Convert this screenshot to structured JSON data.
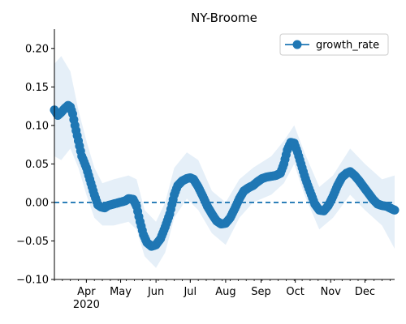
{
  "chart_data": {
    "type": "line",
    "title": "NY-Broome",
    "xlabel": "",
    "ylabel": "",
    "x_range": [
      "2020-03-04",
      "2020-12-27"
    ],
    "ylim": [
      -0.1,
      0.225
    ],
    "y_ticks": [
      -0.1,
      -0.05,
      0.0,
      0.05,
      0.1,
      0.15,
      0.2
    ],
    "y_tick_labels": [
      "−0.10",
      "−0.05",
      "0.00",
      "0.05",
      "0.10",
      "0.15",
      "0.20"
    ],
    "x_ticks": [
      {
        "date": "2020-04-01",
        "label": "Apr"
      },
      {
        "date": "2020-05-01",
        "label": "May"
      },
      {
        "date": "2020-06-01",
        "label": "Jun"
      },
      {
        "date": "2020-07-01",
        "label": "Jul"
      },
      {
        "date": "2020-08-01",
        "label": "Aug"
      },
      {
        "date": "2020-09-01",
        "label": "Sep"
      },
      {
        "date": "2020-10-01",
        "label": "Oct"
      },
      {
        "date": "2020-11-01",
        "label": "Nov"
      },
      {
        "date": "2020-12-01",
        "label": "Dec"
      }
    ],
    "x_year_label": "2020",
    "legend": {
      "placement": "top-right",
      "entries": [
        "growth_rate"
      ]
    },
    "reference_line": {
      "y": 0.0,
      "style": "dashed"
    },
    "grid": false,
    "colors": {
      "series": "#1f77b4",
      "band": "#d4e4f4"
    },
    "series": [
      {
        "name": "growth_rate",
        "points": [
          [
            "2020-03-04",
            0.12
          ],
          [
            "2020-03-07",
            0.113
          ],
          [
            "2020-03-10",
            0.117
          ],
          [
            "2020-03-13",
            0.122
          ],
          [
            "2020-03-16",
            0.126
          ],
          [
            "2020-03-18",
            0.124
          ],
          [
            "2020-03-20",
            0.115
          ],
          [
            "2020-03-22",
            0.1
          ],
          [
            "2020-03-25",
            0.08
          ],
          [
            "2020-03-28",
            0.06
          ],
          [
            "2020-04-01",
            0.045
          ],
          [
            "2020-04-05",
            0.025
          ],
          [
            "2020-04-08",
            0.01
          ],
          [
            "2020-04-11",
            -0.003
          ],
          [
            "2020-04-14",
            -0.006
          ],
          [
            "2020-04-17",
            -0.007
          ],
          [
            "2020-04-20",
            -0.004
          ],
          [
            "2020-04-25",
            -0.002
          ],
          [
            "2020-04-30",
            0.0
          ],
          [
            "2020-05-05",
            0.002
          ],
          [
            "2020-05-08",
            0.005
          ],
          [
            "2020-05-12",
            0.004
          ],
          [
            "2020-05-15",
            -0.005
          ],
          [
            "2020-05-18",
            -0.025
          ],
          [
            "2020-05-21",
            -0.042
          ],
          [
            "2020-05-24",
            -0.052
          ],
          [
            "2020-05-28",
            -0.057
          ],
          [
            "2020-06-01",
            -0.055
          ],
          [
            "2020-06-05",
            -0.047
          ],
          [
            "2020-06-09",
            -0.032
          ],
          [
            "2020-06-13",
            -0.015
          ],
          [
            "2020-06-17",
            0.01
          ],
          [
            "2020-06-20",
            0.022
          ],
          [
            "2020-06-24",
            0.028
          ],
          [
            "2020-06-28",
            0.031
          ],
          [
            "2020-07-01",
            0.032
          ],
          [
            "2020-07-04",
            0.03
          ],
          [
            "2020-07-08",
            0.02
          ],
          [
            "2020-07-12",
            0.008
          ],
          [
            "2020-07-16",
            -0.005
          ],
          [
            "2020-07-20",
            -0.015
          ],
          [
            "2020-07-24",
            -0.024
          ],
          [
            "2020-07-28",
            -0.028
          ],
          [
            "2020-08-01",
            -0.027
          ],
          [
            "2020-08-05",
            -0.02
          ],
          [
            "2020-08-09",
            -0.008
          ],
          [
            "2020-08-13",
            0.005
          ],
          [
            "2020-08-17",
            0.015
          ],
          [
            "2020-08-21",
            0.019
          ],
          [
            "2020-08-25",
            0.022
          ],
          [
            "2020-08-29",
            0.027
          ],
          [
            "2020-09-02",
            0.031
          ],
          [
            "2020-09-06",
            0.033
          ],
          [
            "2020-09-10",
            0.034
          ],
          [
            "2020-09-14",
            0.035
          ],
          [
            "2020-09-18",
            0.038
          ],
          [
            "2020-09-21",
            0.05
          ],
          [
            "2020-09-24",
            0.068
          ],
          [
            "2020-09-27",
            0.078
          ],
          [
            "2020-09-30",
            0.077
          ],
          [
            "2020-10-03",
            0.065
          ],
          [
            "2020-10-06",
            0.05
          ],
          [
            "2020-10-09",
            0.035
          ],
          [
            "2020-10-12",
            0.022
          ],
          [
            "2020-10-15",
            0.01
          ],
          [
            "2020-10-18",
            -0.002
          ],
          [
            "2020-10-22",
            -0.01
          ],
          [
            "2020-10-26",
            -0.011
          ],
          [
            "2020-10-30",
            -0.004
          ],
          [
            "2020-11-03",
            0.008
          ],
          [
            "2020-11-07",
            0.022
          ],
          [
            "2020-11-11",
            0.033
          ],
          [
            "2020-11-15",
            0.038
          ],
          [
            "2020-11-18",
            0.04
          ],
          [
            "2020-11-22",
            0.035
          ],
          [
            "2020-11-26",
            0.028
          ],
          [
            "2020-11-30",
            0.02
          ],
          [
            "2020-12-04",
            0.012
          ],
          [
            "2020-12-08",
            0.004
          ],
          [
            "2020-12-12",
            -0.002
          ],
          [
            "2020-12-16",
            -0.004
          ],
          [
            "2020-12-20",
            -0.005
          ],
          [
            "2020-12-24",
            -0.008
          ],
          [
            "2020-12-27",
            -0.01
          ]
        ],
        "band": [
          [
            "2020-03-04",
            0.06,
            0.18
          ],
          [
            "2020-03-10",
            0.055,
            0.19
          ],
          [
            "2020-03-18",
            0.07,
            0.17
          ],
          [
            "2020-03-25",
            0.045,
            0.12
          ],
          [
            "2020-04-01",
            0.01,
            0.08
          ],
          [
            "2020-04-08",
            -0.02,
            0.045
          ],
          [
            "2020-04-15",
            -0.03,
            0.025
          ],
          [
            "2020-04-25",
            -0.03,
            0.03
          ],
          [
            "2020-05-08",
            -0.025,
            0.035
          ],
          [
            "2020-05-15",
            -0.035,
            0.03
          ],
          [
            "2020-05-22",
            -0.07,
            -0.01
          ],
          [
            "2020-06-01",
            -0.085,
            -0.025
          ],
          [
            "2020-06-09",
            -0.065,
            0.0
          ],
          [
            "2020-06-17",
            -0.02,
            0.045
          ],
          [
            "2020-06-28",
            0.005,
            0.065
          ],
          [
            "2020-07-08",
            -0.01,
            0.055
          ],
          [
            "2020-07-20",
            -0.04,
            0.015
          ],
          [
            "2020-08-01",
            -0.055,
            0.0
          ],
          [
            "2020-08-13",
            -0.02,
            0.03
          ],
          [
            "2020-08-25",
            0.0,
            0.045
          ],
          [
            "2020-09-10",
            0.01,
            0.06
          ],
          [
            "2020-09-21",
            0.025,
            0.08
          ],
          [
            "2020-09-30",
            0.05,
            0.1
          ],
          [
            "2020-10-09",
            0.01,
            0.065
          ],
          [
            "2020-10-22",
            -0.035,
            0.02
          ],
          [
            "2020-11-03",
            -0.02,
            0.035
          ],
          [
            "2020-11-18",
            0.01,
            0.07
          ],
          [
            "2020-12-01",
            -0.01,
            0.05
          ],
          [
            "2020-12-16",
            -0.03,
            0.03
          ],
          [
            "2020-12-27",
            -0.06,
            0.035
          ]
        ]
      }
    ]
  }
}
